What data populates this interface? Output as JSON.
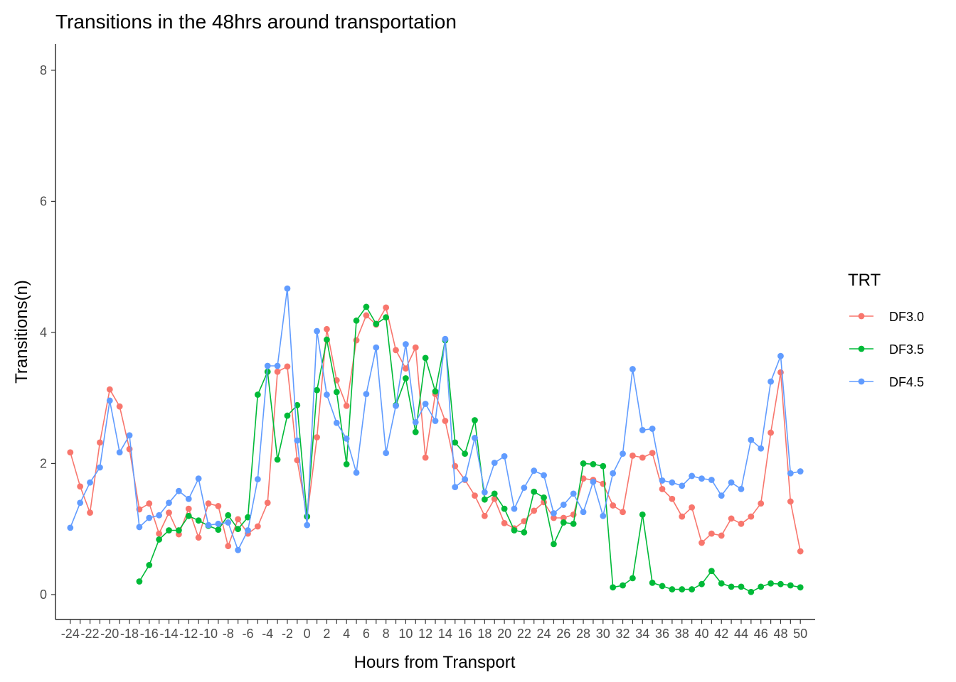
{
  "chart_data": {
    "type": "line",
    "title": "Transitions in the 48hrs around transportation",
    "xlabel": "Hours from Transport",
    "ylabel": "Transitions(n)",
    "xlim": [
      -25.5,
      51.5
    ],
    "ylim": [
      -0.38,
      8.4
    ],
    "x_ticks": [
      -24,
      -23,
      -22,
      -21,
      -20,
      -19,
      -18,
      -17,
      -16,
      -15,
      -14,
      -13,
      -12,
      -11,
      -10,
      -9,
      -8,
      -7,
      -6,
      -5,
      -4,
      -3,
      -2,
      -1,
      0,
      1,
      2,
      3,
      4,
      5,
      6,
      7,
      8,
      9,
      10,
      11,
      12,
      13,
      14,
      15,
      16,
      17,
      18,
      19,
      20,
      21,
      22,
      23,
      24,
      25,
      26,
      27,
      28,
      29,
      30,
      31,
      32,
      33,
      34,
      35,
      36,
      37,
      38,
      39,
      40,
      41,
      42,
      43,
      44,
      45,
      46,
      47,
      48,
      49,
      50
    ],
    "x_tick_labels": [
      "-24",
      "",
      "-22",
      "",
      "-20",
      "",
      "-18",
      "",
      "-16",
      "",
      "-14",
      "",
      "-12",
      "",
      "-10",
      "",
      "-8",
      "",
      "-6",
      "",
      "-4",
      "",
      "-2",
      "",
      "0",
      "",
      "2",
      "",
      "4",
      "",
      "6",
      "",
      "8",
      "",
      "10",
      "",
      "12",
      "",
      "14",
      "",
      "16",
      "",
      "18",
      "",
      "20",
      "",
      "22",
      "",
      "24",
      "",
      "26",
      "",
      "28",
      "",
      "30",
      "",
      "32",
      "",
      "34",
      "",
      "36",
      "",
      "38",
      "",
      "40",
      "",
      "42",
      "",
      "44",
      "",
      "46",
      "",
      "48",
      "",
      "50"
    ],
    "y_ticks": [
      0,
      2,
      4,
      6,
      8
    ],
    "grid": false,
    "legend": {
      "title": "TRT",
      "position": "right"
    },
    "series": [
      {
        "name": "DF3.0",
        "color": "#F8766D",
        "x": [
          -24,
          -23,
          -22,
          -21,
          -20,
          -19,
          -18,
          -17,
          -16,
          -15,
          -14,
          -13,
          -12,
          -11,
          -10,
          -9,
          -8,
          -7,
          -6,
          -5,
          -4,
          -3,
          -2,
          -1,
          0,
          1,
          2,
          3,
          4,
          5,
          6,
          7,
          8,
          9,
          10,
          11,
          12,
          13,
          14,
          15,
          16,
          17,
          18,
          19,
          20,
          21,
          22,
          23,
          24,
          25,
          26,
          27,
          28,
          29,
          30,
          31,
          32,
          33,
          34,
          35,
          36,
          37,
          38,
          39,
          40,
          41,
          42,
          43,
          44,
          45,
          46,
          47,
          48,
          49,
          50
        ],
        "y": [
          2.17,
          1.65,
          1.25,
          2.32,
          3.13,
          2.87,
          2.22,
          1.3,
          1.39,
          0.93,
          1.25,
          0.92,
          1.31,
          0.87,
          1.39,
          1.35,
          0.74,
          1.15,
          0.93,
          1.04,
          1.4,
          3.4,
          3.48,
          2.05,
          1.19,
          2.4,
          4.05,
          3.27,
          2.88,
          3.88,
          4.26,
          4.12,
          4.38,
          3.73,
          3.45,
          3.77,
          2.09,
          3.06,
          2.65,
          1.96,
          1.75,
          1.51,
          1.2,
          1.46,
          1.09,
          1.01,
          1.12,
          1.28,
          1.41,
          1.17,
          1.17,
          1.22,
          1.77,
          1.75,
          1.69,
          1.36,
          1.26,
          2.12,
          2.09,
          2.16,
          1.61,
          1.46,
          1.19,
          1.33,
          0.79,
          0.93,
          0.9,
          1.16,
          1.08,
          1.19,
          1.39,
          2.47,
          3.39,
          1.42,
          0.66
        ]
      },
      {
        "name": "DF3.5",
        "color": "#00BA38",
        "x": [
          -17,
          -16,
          -15,
          -14,
          -13,
          -12,
          -11,
          -10,
          -9,
          -8,
          -7,
          -6,
          -5,
          -4,
          -3,
          -2,
          -1,
          0,
          1,
          2,
          3,
          4,
          5,
          6,
          7,
          8,
          9,
          10,
          11,
          12,
          13,
          14,
          15,
          16,
          17,
          18,
          19,
          20,
          21,
          22,
          23,
          24,
          25,
          26,
          27,
          28,
          29,
          30,
          31,
          32,
          33,
          34,
          35,
          36,
          37,
          38,
          39,
          40,
          41,
          42,
          43,
          44,
          45,
          46,
          47,
          48,
          49,
          50
        ],
        "y": [
          0.2,
          0.45,
          0.84,
          0.98,
          0.98,
          1.2,
          1.13,
          1.05,
          0.99,
          1.21,
          1.0,
          1.18,
          3.05,
          3.4,
          2.06,
          2.73,
          2.89,
          1.19,
          3.12,
          3.89,
          3.09,
          1.99,
          4.18,
          4.39,
          4.13,
          4.23,
          2.89,
          3.3,
          2.48,
          3.61,
          3.1,
          3.88,
          2.32,
          2.15,
          2.66,
          1.45,
          1.54,
          1.31,
          0.98,
          0.95,
          1.57,
          1.48,
          0.77,
          1.1,
          1.08,
          2.0,
          1.99,
          1.96,
          0.11,
          0.14,
          0.25,
          1.22,
          0.18,
          0.13,
          0.08,
          0.08,
          0.08,
          0.16,
          0.36,
          0.17,
          0.12,
          0.12,
          0.04,
          0.12,
          0.17,
          0.16,
          0.14,
          0.11
        ]
      },
      {
        "name": "DF4.5",
        "color": "#619CFF",
        "x": [
          -24,
          -23,
          -22,
          -21,
          -20,
          -19,
          -18,
          -17,
          -16,
          -15,
          -14,
          -13,
          -12,
          -11,
          -10,
          -9,
          -8,
          -7,
          -6,
          -5,
          -4,
          -3,
          -2,
          -1,
          0,
          1,
          2,
          3,
          4,
          5,
          6,
          7,
          8,
          9,
          10,
          11,
          12,
          13,
          14,
          15,
          16,
          17,
          18,
          19,
          20,
          21,
          22,
          23,
          24,
          25,
          26,
          27,
          28,
          29,
          30,
          31,
          32,
          33,
          34,
          35,
          36,
          37,
          38,
          39,
          40,
          41,
          42,
          43,
          44,
          45,
          46,
          47,
          48,
          49,
          50
        ],
        "y": [
          1.02,
          1.4,
          1.71,
          1.94,
          2.96,
          2.17,
          2.43,
          1.03,
          1.17,
          1.21,
          1.4,
          1.58,
          1.46,
          1.77,
          1.06,
          1.08,
          1.1,
          0.68,
          0.98,
          1.76,
          3.49,
          3.49,
          4.67,
          2.35,
          1.06,
          4.02,
          3.05,
          2.62,
          2.38,
          1.86,
          3.06,
          3.77,
          2.16,
          2.88,
          3.82,
          2.63,
          2.91,
          2.65,
          3.9,
          1.64,
          1.76,
          2.39,
          1.56,
          2.01,
          2.11,
          1.31,
          1.63,
          1.89,
          1.82,
          1.24,
          1.37,
          1.54,
          1.26,
          1.72,
          1.2,
          1.85,
          2.15,
          3.44,
          2.51,
          2.53,
          1.74,
          1.71,
          1.66,
          1.81,
          1.77,
          1.75,
          1.51,
          1.71,
          1.61,
          2.36,
          2.23,
          3.25,
          3.64,
          1.85,
          1.88
        ]
      }
    ]
  }
}
